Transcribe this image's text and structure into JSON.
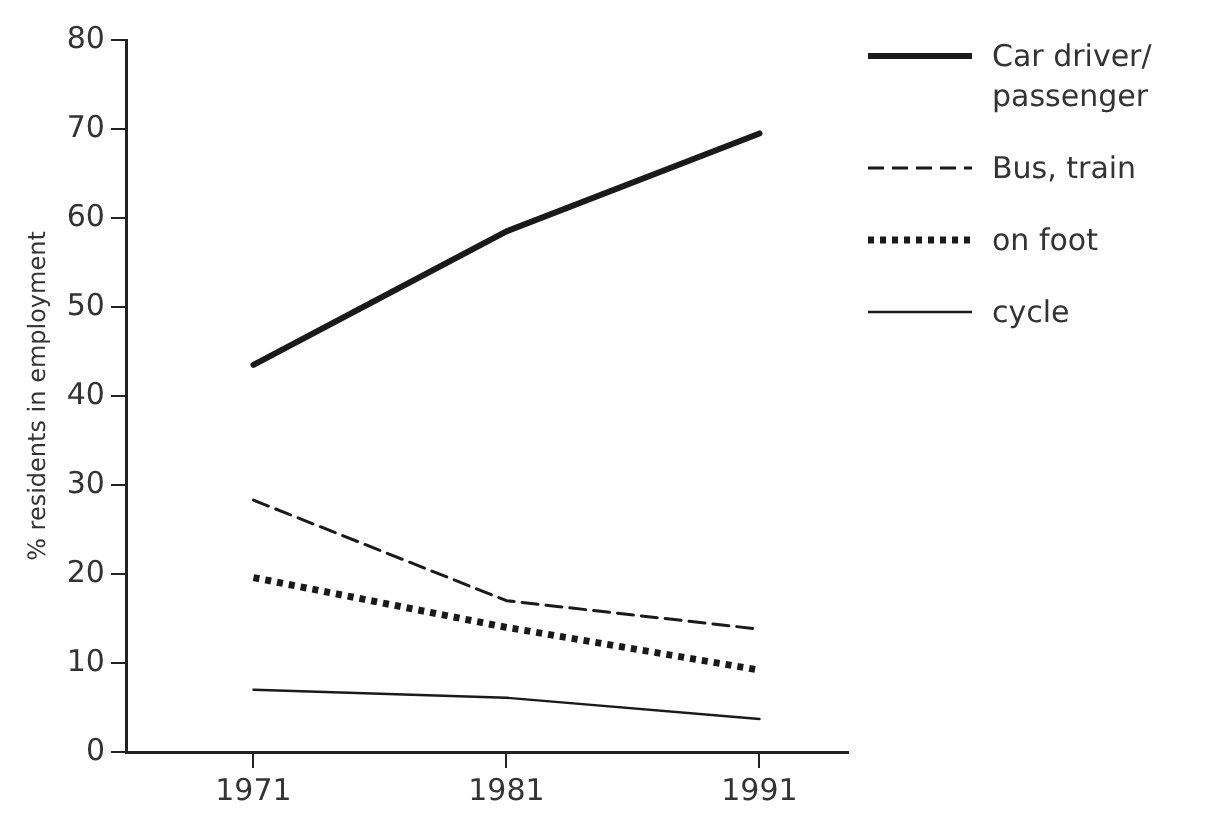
{
  "chart_data": {
    "type": "line",
    "ylabel": "% residents in employment",
    "x": [
      1971,
      1981,
      1991
    ],
    "xlim": [
      1966,
      1994.5
    ],
    "xticks": [
      1971,
      1981,
      1991
    ],
    "ylim": [
      0,
      80
    ],
    "yticks": [
      0,
      10,
      20,
      30,
      40,
      50,
      60,
      70,
      80
    ],
    "grid": false,
    "legend": "right",
    "marker": "none",
    "series": [
      {
        "name": "Car driver/ passenger",
        "color": "#1a1a1a",
        "line_style": "solid",
        "values": [
          43.5,
          58.5,
          69.5
        ]
      },
      {
        "name": "Bus, train",
        "color": "#1a1a1a",
        "line_style": "dashed",
        "values": [
          28.3,
          17,
          13.8
        ]
      },
      {
        "name": "on foot",
        "color": "#1a1a1a",
        "line_style": "dotted",
        "values": [
          19.6,
          14,
          9.2
        ]
      },
      {
        "name": "cycle",
        "color": "#1a1a1a",
        "line_style": "solid",
        "values": [
          7,
          6.1,
          3.7
        ]
      }
    ]
  }
}
